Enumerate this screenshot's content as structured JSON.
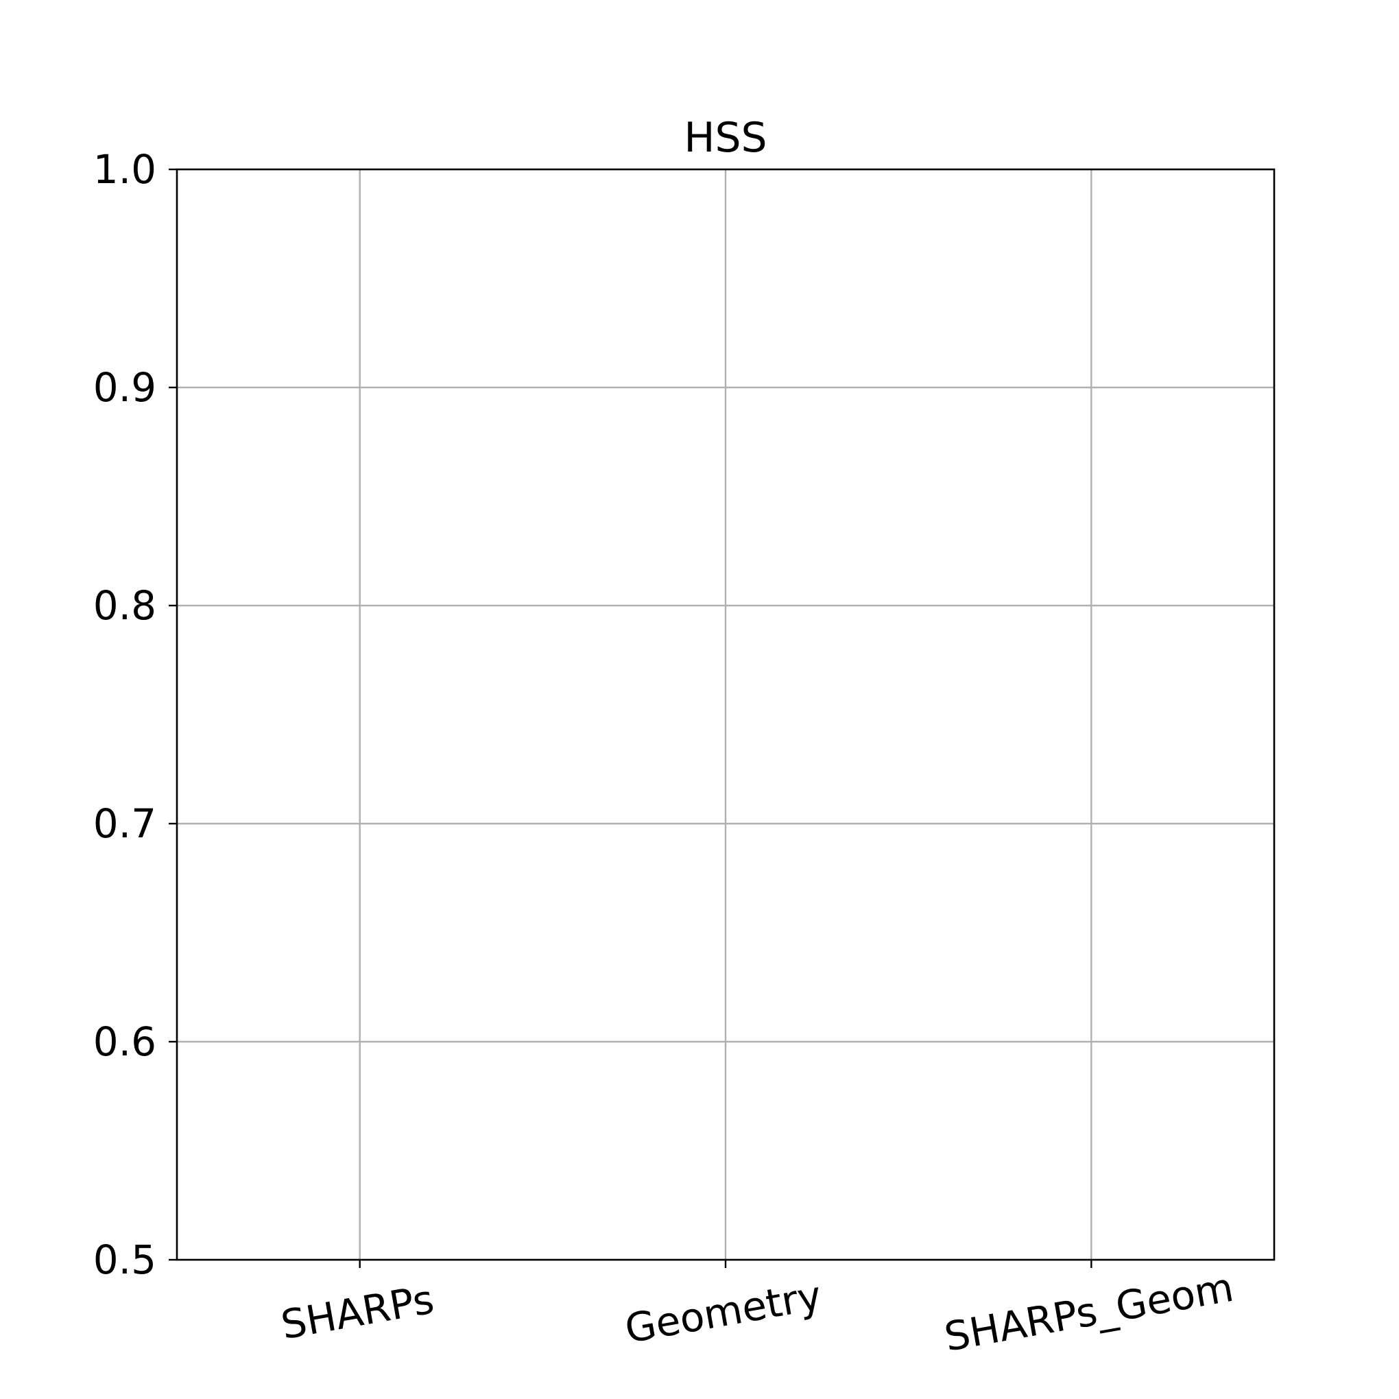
{
  "chart_data": {
    "type": "bar",
    "title": "HSS",
    "categories": [
      "SHARPs",
      "Geometry",
      "SHARPs_Geom"
    ],
    "series": [],
    "xlabel": "",
    "ylabel": "",
    "ylim": [
      0.5,
      1.0
    ],
    "yticks": [
      0.5,
      0.6,
      0.7,
      0.8,
      0.9,
      1.0
    ],
    "ytick_labels": [
      "0.5",
      "0.6",
      "0.7",
      "0.8",
      "0.9",
      "1.0"
    ],
    "grid": true,
    "legend": "none"
  },
  "colors": {
    "grid": "#b0b0b0",
    "axes": "#000000",
    "background": "#ffffff"
  }
}
